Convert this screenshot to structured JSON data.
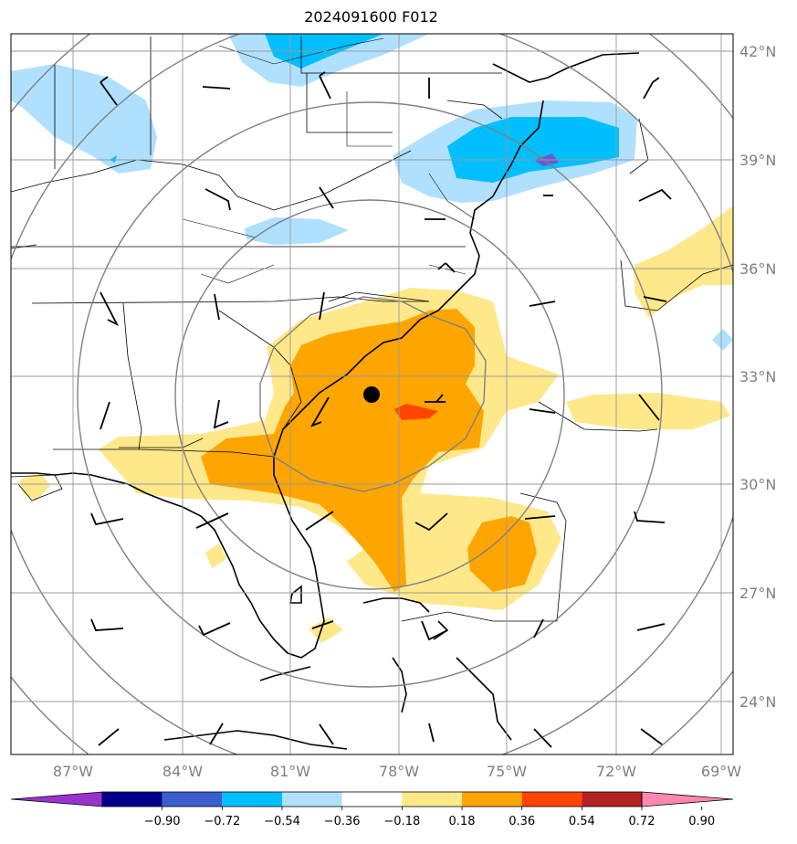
{
  "title": "2024091600 F012",
  "lat_labels": [
    "42°N",
    "39°N",
    "36°N",
    "33°N",
    "30°N",
    "27°N",
    "24°N"
  ],
  "lon_labels": [
    "87°W",
    "84°W",
    "81°W",
    "78°W",
    "75°W",
    "72°W",
    "69°W"
  ],
  "colorbar": {
    "labels": [
      "−0.90",
      "−0.72",
      "−0.54",
      "−0.36",
      "−0.18",
      "0.18",
      "0.36",
      "0.54",
      "0.72",
      "0.90"
    ],
    "colors": [
      "#9932cc",
      "#00008b",
      "#3a5fcd",
      "#00bfff",
      "#b0e0ff",
      "#ffffff",
      "#ffe88a",
      "#ffa500",
      "#ff4500",
      "#b22222",
      "#ff88b0"
    ]
  },
  "fill_colors": {
    "light_blue": "#b0e0ff",
    "blue": "#00bfff",
    "purple": "#6a5acd",
    "light_yellow": "#ffe88a",
    "orange": "#ffa500",
    "red_orange": "#ff4500"
  },
  "marker": {
    "label": "storm-center",
    "lat": 32.5,
    "lon": -78.7
  }
}
